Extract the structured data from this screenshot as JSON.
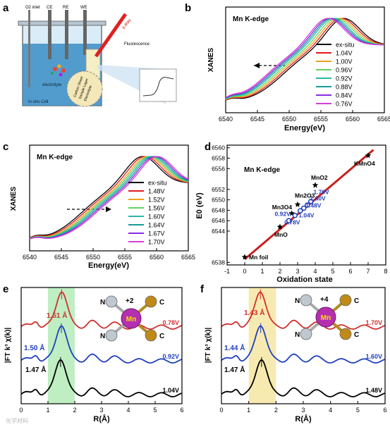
{
  "panel_labels": {
    "a": "a",
    "b": "b",
    "c": "c",
    "d": "d",
    "e": "e",
    "f": "f"
  },
  "schematic": {
    "o2_inlet": "O2 inlet",
    "ce": "CE",
    "re": "RE",
    "we": "WE",
    "xray": "X-Ray",
    "fluorescence": "Fluorescence",
    "electrolyte": "electrolyte",
    "cell": "In-situ Cell",
    "layers": [
      "Carbon Sheet",
      "Sample Layer",
      "Electrolyte"
    ]
  },
  "watermark": "化学材料",
  "chart_data": [
    {
      "panel": "b",
      "type": "line",
      "title": "Mn K-edge",
      "xlabel": "Energy(eV)",
      "ylabel": "XANES",
      "xlim": [
        6540,
        6565
      ],
      "xticks": [
        6540,
        6545,
        6550,
        6555,
        6560,
        6565
      ],
      "series": [
        {
          "name": "ex-situ",
          "color": "#000000",
          "edge": 6549.0
        },
        {
          "name": "1.04V",
          "color": "#e31a1c",
          "edge": 6548.6
        },
        {
          "name": "1.00V",
          "color": "#f0a020",
          "edge": 6548.2
        },
        {
          "name": "0.96V",
          "color": "#5fd35f",
          "edge": 6547.8
        },
        {
          "name": "0.92V",
          "color": "#2ab7a6",
          "edge": 6547.4
        },
        {
          "name": "0.88V",
          "color": "#1a9a9a",
          "edge": 6547.1
        },
        {
          "name": "0.84V",
          "color": "#8a2be2",
          "edge": 6546.8
        },
        {
          "name": "0.76V",
          "color": "#d63cd6",
          "edge": 6546.5
        }
      ]
    },
    {
      "panel": "c",
      "type": "line",
      "title": "Mn K-edge",
      "xlabel": "Energy(eV)",
      "ylabel": "XANES",
      "xlim": [
        6540,
        6565
      ],
      "xticks": [
        6540,
        6545,
        6550,
        6555,
        6560,
        6565
      ],
      "series": [
        {
          "name": "ex-situ",
          "color": "#000000",
          "edge": 6548.2
        },
        {
          "name": "1.48V",
          "color": "#e31a1c",
          "edge": 6548.6
        },
        {
          "name": "1.52V",
          "color": "#f0a020",
          "edge": 6549.0
        },
        {
          "name": "1.56V",
          "color": "#5fd35f",
          "edge": 6549.3
        },
        {
          "name": "1.60V",
          "color": "#2ab7a6",
          "edge": 6549.6
        },
        {
          "name": "1.64V",
          "color": "#1a9a9a",
          "edge": 6549.9
        },
        {
          "name": "1.67V",
          "color": "#8a2be2",
          "edge": 6550.2
        },
        {
          "name": "1.70V",
          "color": "#d63cd6",
          "edge": 6550.5
        }
      ]
    },
    {
      "panel": "d",
      "type": "scatter",
      "title": "Mn K-edge",
      "xlabel": "Oxidation state",
      "ylabel": "E0 (eV)",
      "xticks": [
        -1,
        0,
        1,
        2,
        3,
        4,
        5,
        6,
        7,
        8
      ],
      "yticks": [
        6538,
        6544,
        6546,
        6548,
        6550,
        6552,
        6556,
        6558,
        6560
      ],
      "references": [
        {
          "label": "Mn foil",
          "x": 0,
          "y": 6539
        },
        {
          "label": "MnO",
          "x": 2,
          "y": 6544.8
        },
        {
          "label": "Mn3O4",
          "x": 2.67,
          "y": 6547.4
        },
        {
          "label": "Mn2O3",
          "x": 3,
          "y": 6549.1
        },
        {
          "label": "MnO2",
          "x": 4,
          "y": 6552.8
        },
        {
          "label": "KMnO4",
          "x": 7,
          "y": 6558.5
        }
      ],
      "fit_line": {
        "x": [
          0,
          7.3
        ],
        "y": [
          6538.6,
          6559.6
        ]
      },
      "samples": [
        {
          "label": "0.78V",
          "x": 2.5,
          "y": 6546.0
        },
        {
          "label": "0.92V",
          "x": 2.85,
          "y": 6547.0
        },
        {
          "label": "1.04V",
          "x": 3.15,
          "y": 6547.9
        },
        {
          "label": "1.48V",
          "x": 3.35,
          "y": 6548.4
        },
        {
          "label": "1.60V",
          "x": 3.55,
          "y": 6549.0
        },
        {
          "label": "1.70V",
          "x": 3.75,
          "y": 6549.7
        }
      ],
      "sample_labels": [
        "1.70V",
        "1.60V",
        "1.48V",
        "1.04V",
        "0.92V",
        "0.78V"
      ]
    },
    {
      "panel": "e",
      "type": "line",
      "xlabel": "R(Å)",
      "ylabel": "|FT k³ χ(k)|",
      "xlim": [
        0,
        6
      ],
      "xticks": [
        0,
        1,
        2,
        3,
        4,
        5,
        6
      ],
      "highlight": [
        1.0,
        2.0
      ],
      "highlight_color": "#bfeec2",
      "series": [
        {
          "name": "1.04V",
          "color": "#000000",
          "peak": 1.47,
          "peak_label": "1.47 Å"
        },
        {
          "name": "0.92V",
          "color": "#1f3fbf",
          "peak": 1.5,
          "peak_label": "1.50 Å"
        },
        {
          "name": "0.78V",
          "color": "#d03030",
          "peak": 1.51,
          "peak_label": "1.51 Å"
        }
      ],
      "inset": {
        "center": "Mn",
        "label": "+2",
        "ligands": [
          "N",
          "N",
          "C",
          "C"
        ]
      }
    },
    {
      "panel": "f",
      "type": "line",
      "xlabel": "R(Å)",
      "ylabel": "|FT k³ χ(k)|",
      "xlim": [
        0,
        6
      ],
      "xticks": [
        0,
        1,
        2,
        3,
        4,
        5,
        6
      ],
      "highlight": [
        1.0,
        2.0
      ],
      "highlight_color": "#f7eab0",
      "series": [
        {
          "name": "1.48V",
          "color": "#000000",
          "peak": 1.47,
          "peak_label": "1.47 Å"
        },
        {
          "name": "1.60V",
          "color": "#1f3fbf",
          "peak": 1.44,
          "peak_label": "1.44 Å"
        },
        {
          "name": "1.70V",
          "color": "#d03030",
          "peak": 1.43,
          "peak_label": "1.43 Å"
        }
      ],
      "inset": {
        "center": "Mn",
        "label": "+4",
        "ligands": [
          "N",
          "N",
          "C",
          "C"
        ]
      }
    }
  ]
}
